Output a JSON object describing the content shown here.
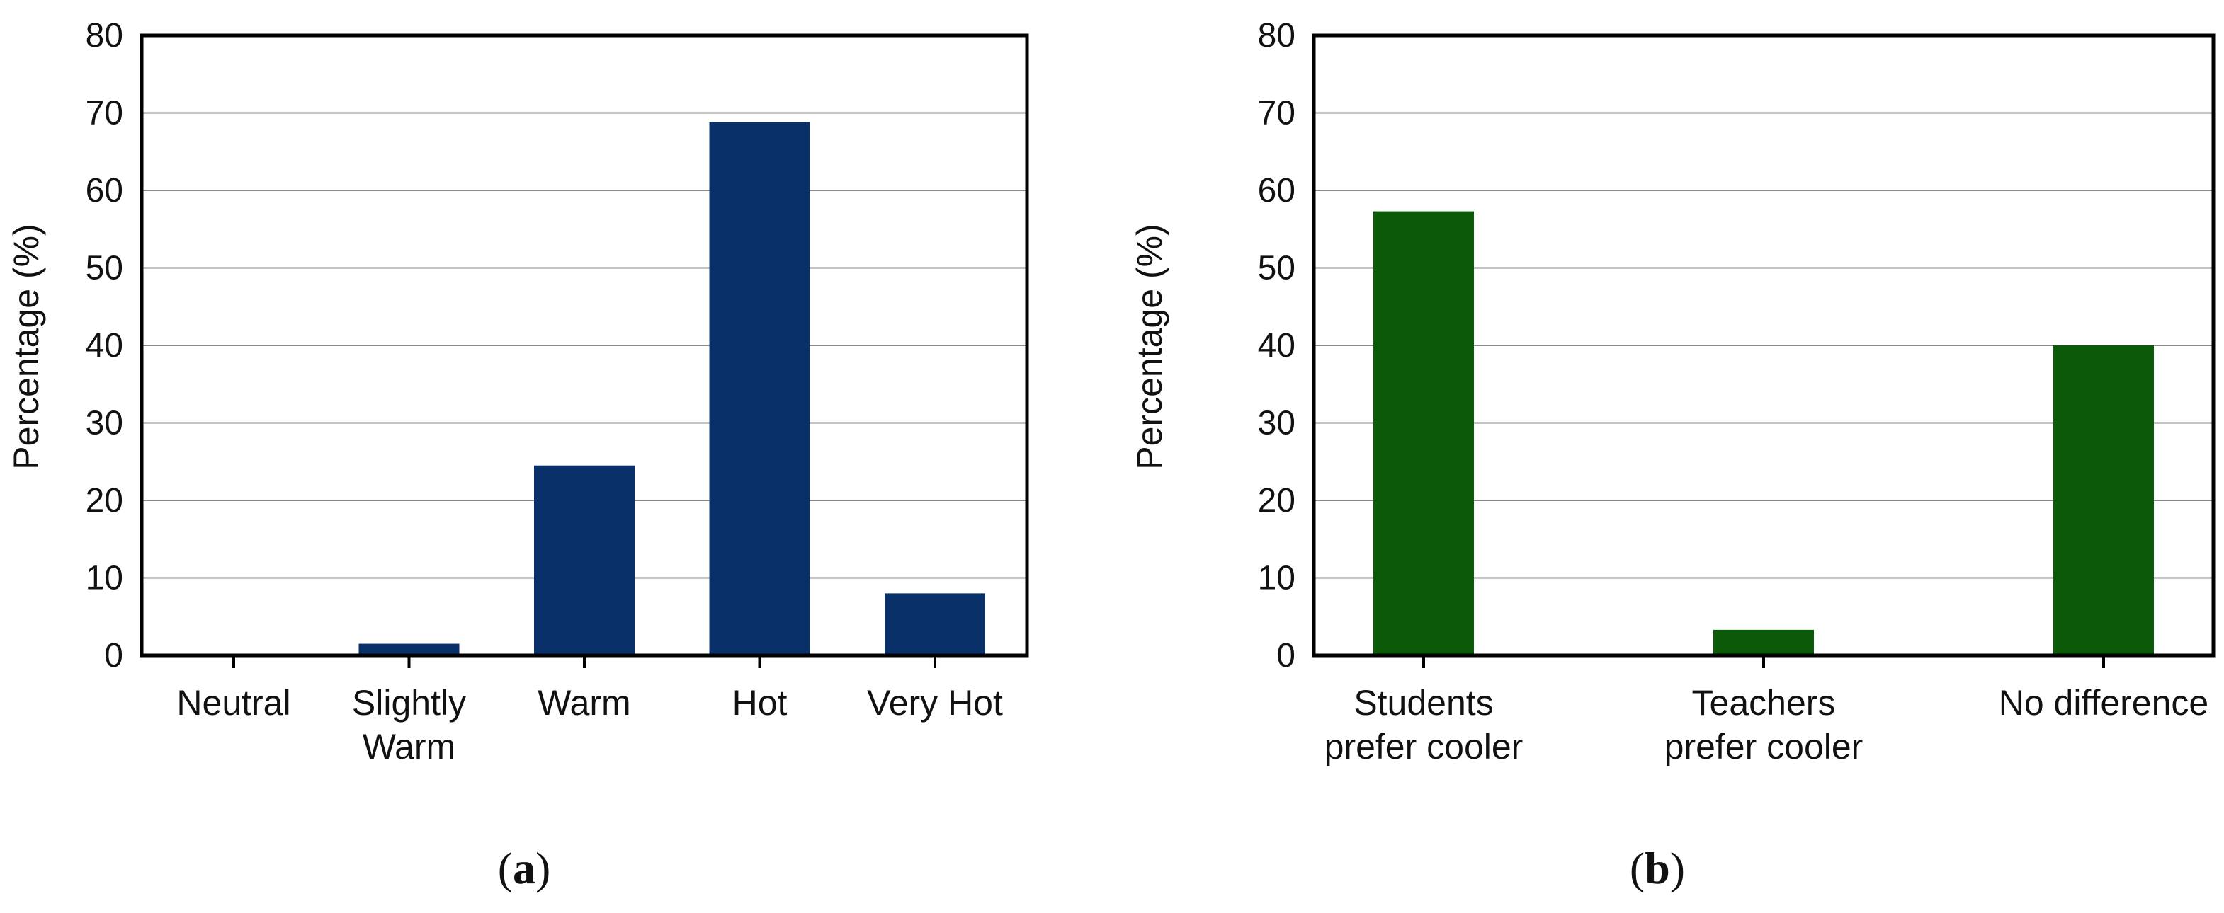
{
  "chart_data": [
    {
      "type": "bar",
      "panel": "a",
      "categories": [
        [
          "Neutral"
        ],
        [
          "Slightly",
          "Warm"
        ],
        [
          "Warm"
        ],
        [
          "Hot"
        ],
        [
          "Very Hot"
        ]
      ],
      "values": [
        0,
        1.5,
        24.5,
        68.8,
        8
      ],
      "ylabel": "Percentage (%)",
      "xlabel": "",
      "ylim": [
        0,
        80
      ],
      "yticks": [
        0,
        10,
        20,
        30,
        40,
        50,
        60,
        70,
        80
      ],
      "grid": true,
      "bar_color": "#0a3069"
    },
    {
      "type": "bar",
      "panel": "b",
      "categories": [
        [
          "Students",
          "prefer cooler"
        ],
        [
          "Teachers",
          "prefer cooler"
        ],
        [
          "No difference"
        ]
      ],
      "values": [
        57.3,
        3.3,
        40
      ],
      "ylabel": "Percentage (%)",
      "xlabel": "",
      "ylim": [
        0,
        80
      ],
      "yticks": [
        0,
        10,
        20,
        30,
        40,
        50,
        60,
        70,
        80
      ],
      "grid": true,
      "bar_color": "#0a5a0a"
    }
  ],
  "panel_labels": [
    {
      "open": "(",
      "letter": "a",
      "close": ")"
    },
    {
      "open": "(",
      "letter": "b",
      "close": ")"
    }
  ]
}
